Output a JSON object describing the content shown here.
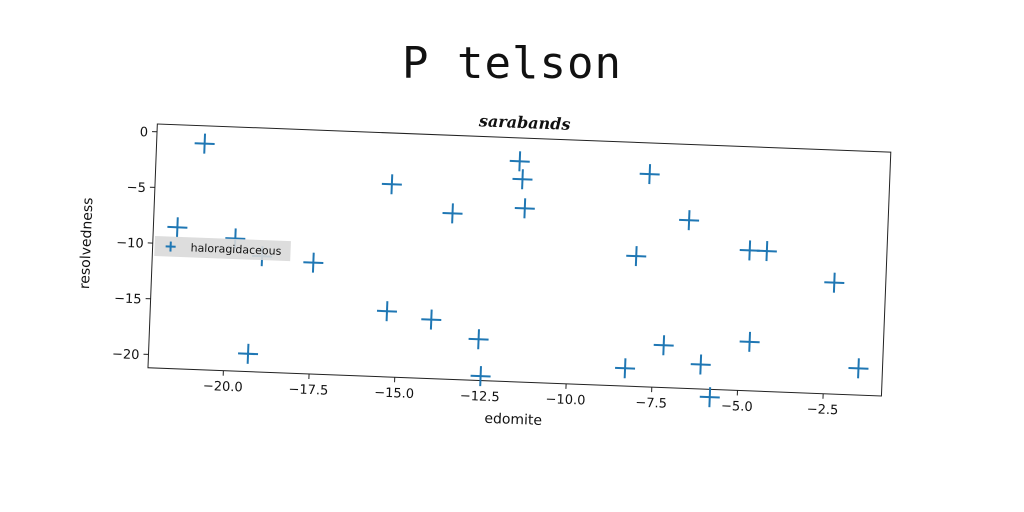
{
  "page": {
    "title": "P telson"
  },
  "chart_data": {
    "type": "scatter",
    "title": "sarabands",
    "xlabel": "edomite",
    "ylabel": "resolvedness",
    "xlim": [
      -22.2,
      -0.8
    ],
    "ylim": [
      -21.2,
      0.7
    ],
    "grid": false,
    "legend_position": "center-left",
    "x_ticks": [
      -20.0,
      -17.5,
      -15.0,
      -12.5,
      -10.0,
      -7.5,
      -5.0,
      -2.5
    ],
    "x_tick_labels": [
      "−20.0",
      "−17.5",
      "−15.0",
      "−12.5",
      "−10.0",
      "−7.5",
      "−5.0",
      "−2.5"
    ],
    "y_ticks": [
      0,
      -5,
      -10,
      -15,
      -20
    ],
    "y_tick_labels": [
      "0",
      "−5",
      "−10",
      "−15",
      "−20"
    ],
    "series": [
      {
        "name": "haloragidaceous",
        "color": "#1f77b4",
        "marker": "plus",
        "points": [
          {
            "x": -20.8,
            "y": -0.9
          },
          {
            "x": -21.5,
            "y": -8.5
          },
          {
            "x": -19.8,
            "y": -9.3
          },
          {
            "x": -19.0,
            "y": -10.8
          },
          {
            "x": -17.5,
            "y": -11.2
          },
          {
            "x": -19.3,
            "y": -19.6
          },
          {
            "x": -15.3,
            "y": -3.9
          },
          {
            "x": -15.3,
            "y": -15.3
          },
          {
            "x": -14.0,
            "y": -15.9
          },
          {
            "x": -13.5,
            "y": -6.3
          },
          {
            "x": -12.6,
            "y": -17.5
          },
          {
            "x": -12.5,
            "y": -20.8
          },
          {
            "x": -11.6,
            "y": -1.4
          },
          {
            "x": -11.5,
            "y": -3.0
          },
          {
            "x": -11.4,
            "y": -5.6
          },
          {
            "x": -8.3,
            "y": -19.6
          },
          {
            "x": -8.1,
            "y": -9.5
          },
          {
            "x": -7.8,
            "y": -2.1
          },
          {
            "x": -7.2,
            "y": -17.4
          },
          {
            "x": -6.6,
            "y": -6.1
          },
          {
            "x": -6.1,
            "y": -19.0
          },
          {
            "x": -5.8,
            "y": -21.9
          },
          {
            "x": -4.8,
            "y": -8.6
          },
          {
            "x": -4.7,
            "y": -16.8
          },
          {
            "x": -4.3,
            "y": -8.6
          },
          {
            "x": -2.3,
            "y": -11.2
          },
          {
            "x": -1.5,
            "y": -18.8
          }
        ]
      }
    ]
  }
}
